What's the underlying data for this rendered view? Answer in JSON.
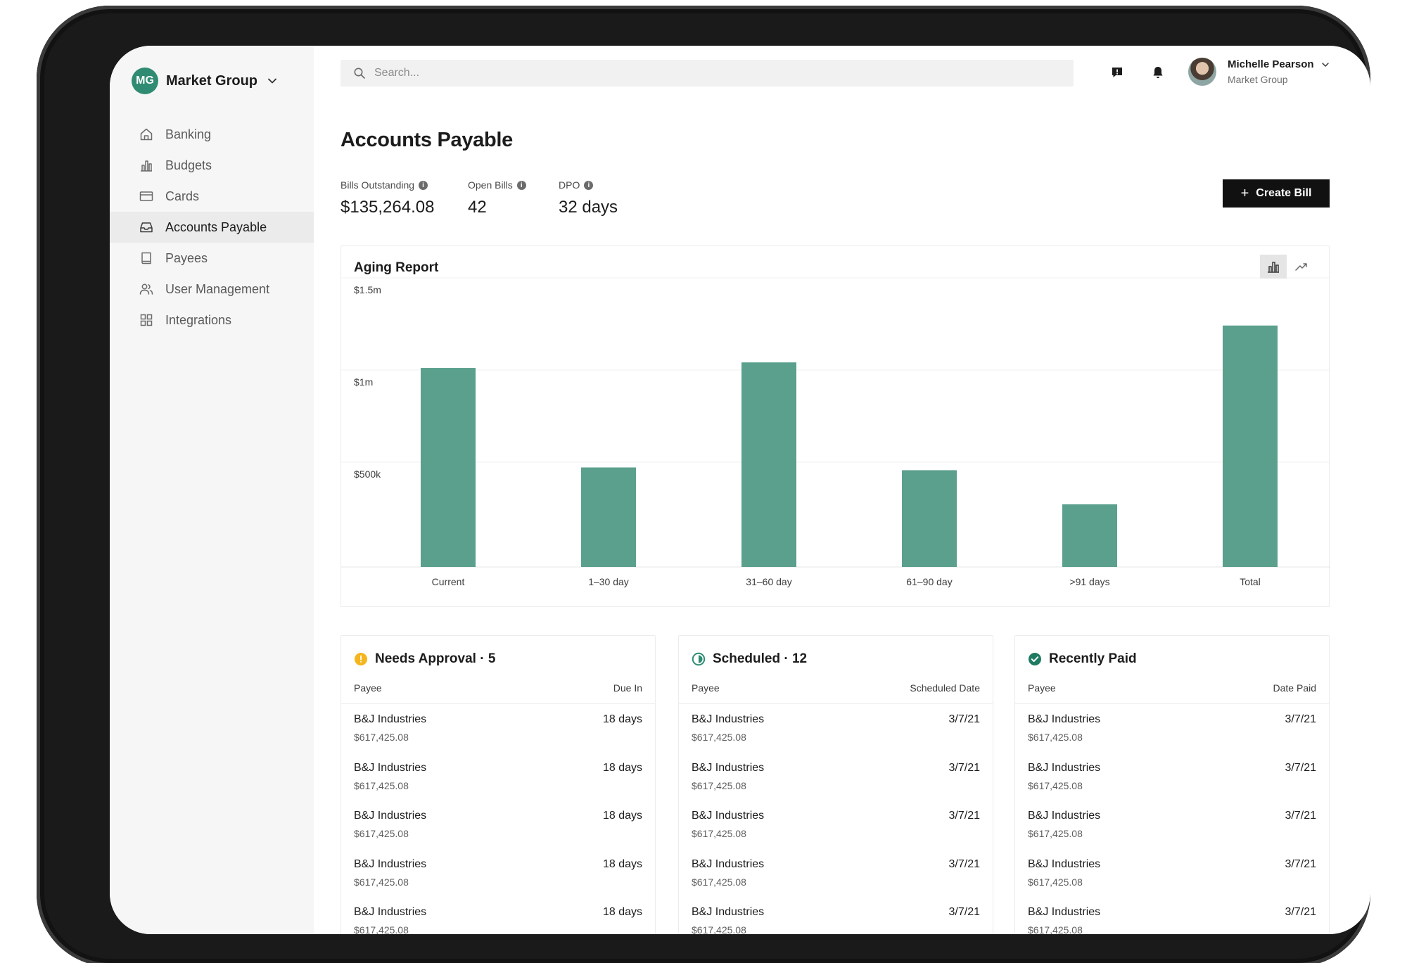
{
  "org": {
    "initials": "MG",
    "name": "Market Group"
  },
  "nav": [
    {
      "label": "Banking",
      "icon": "home-icon"
    },
    {
      "label": "Budgets",
      "icon": "bar-chart-icon"
    },
    {
      "label": "Cards",
      "icon": "card-icon"
    },
    {
      "label": "Accounts Payable",
      "icon": "inbox-icon",
      "active": true
    },
    {
      "label": "Payees",
      "icon": "book-icon"
    },
    {
      "label": "User Management",
      "icon": "users-icon"
    },
    {
      "label": "Integrations",
      "icon": "grid-icon"
    }
  ],
  "search": {
    "placeholder": "Search...",
    "value": ""
  },
  "user": {
    "name": "Michelle Pearson",
    "org": "Market Group"
  },
  "page": {
    "title": "Accounts Payable",
    "stats": [
      {
        "label": "Bills Outstanding",
        "value": "$135,264.08"
      },
      {
        "label": "Open Bills",
        "value": "42"
      },
      {
        "label": "DPO",
        "value": "32 days"
      }
    ],
    "create_label": "Create Bill"
  },
  "chart_data": {
    "type": "bar",
    "title": "Aging Report",
    "categories": [
      "Current",
      "1–30 day",
      "31–60 day",
      "61–90 day",
      ">91 days",
      "Total"
    ],
    "values": [
      1080000,
      540000,
      1110000,
      525000,
      340000,
      1310000
    ],
    "y_ticks": [
      {
        "label": "$1.5m",
        "value": 1500000
      },
      {
        "label": "$1m",
        "value": 1000000
      },
      {
        "label": "$500k",
        "value": 500000
      }
    ],
    "ylim": [
      0,
      1500000
    ],
    "bar_color": "#5aa08d",
    "grid": true
  },
  "panels": [
    {
      "title": "Needs Approval · 5",
      "status_icon": "warning-icon",
      "status_color": "#f5b51f",
      "col_left": "Payee",
      "col_right": "Due In",
      "rows": [
        {
          "payee": "B&J Industries",
          "amount": "$617,425.08",
          "value": "18 days"
        },
        {
          "payee": "B&J Industries",
          "amount": "$617,425.08",
          "value": "18 days"
        },
        {
          "payee": "B&J Industries",
          "amount": "$617,425.08",
          "value": "18 days"
        },
        {
          "payee": "B&J Industries",
          "amount": "$617,425.08",
          "value": "18 days"
        },
        {
          "payee": "B&J Industries",
          "amount": "$617,425.08",
          "value": "18 days"
        }
      ]
    },
    {
      "title": "Scheduled · 12",
      "status_icon": "clock-icon",
      "status_color": "#2f8c73",
      "col_left": "Payee",
      "col_right": "Scheduled Date",
      "rows": [
        {
          "payee": "B&J Industries",
          "amount": "$617,425.08",
          "value": "3/7/21"
        },
        {
          "payee": "B&J Industries",
          "amount": "$617,425.08",
          "value": "3/7/21"
        },
        {
          "payee": "B&J Industries",
          "amount": "$617,425.08",
          "value": "3/7/21"
        },
        {
          "payee": "B&J Industries",
          "amount": "$617,425.08",
          "value": "3/7/21"
        },
        {
          "payee": "B&J Industries",
          "amount": "$617,425.08",
          "value": "3/7/21"
        }
      ]
    },
    {
      "title": "Recently Paid",
      "status_icon": "check-circle-icon",
      "status_color": "#1f7a62",
      "col_left": "Payee",
      "col_right": "Date Paid",
      "rows": [
        {
          "payee": "B&J Industries",
          "amount": "$617,425.08",
          "value": "3/7/21"
        },
        {
          "payee": "B&J Industries",
          "amount": "$617,425.08",
          "value": "3/7/21"
        },
        {
          "payee": "B&J Industries",
          "amount": "$617,425.08",
          "value": "3/7/21"
        },
        {
          "payee": "B&J Industries",
          "amount": "$617,425.08",
          "value": "3/7/21"
        },
        {
          "payee": "B&J Industries",
          "amount": "$617,425.08",
          "value": "3/7/21"
        }
      ]
    }
  ]
}
